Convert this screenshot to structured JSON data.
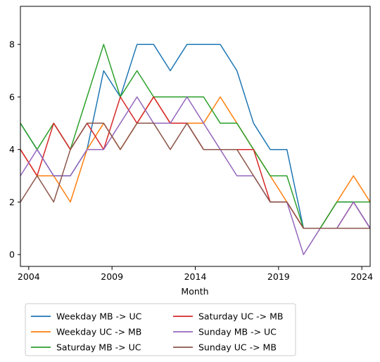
{
  "chart_data": {
    "type": "line",
    "title": "",
    "xlabel": "Month",
    "ylabel": "",
    "x_range": [
      "2003-07",
      "2024-07"
    ],
    "ylim": [
      -0.45,
      9.45
    ],
    "x_ticks": [
      {
        "label": "2004",
        "date": "2004-01"
      },
      {
        "label": "2009",
        "date": "2009-01"
      },
      {
        "label": "2014",
        "date": "2014-01"
      },
      {
        "label": "2019",
        "date": "2019-01"
      },
      {
        "label": "2024",
        "date": "2024-01"
      }
    ],
    "y_ticks": [
      0,
      2,
      4,
      6,
      8
    ],
    "grid": false,
    "legend": {
      "placement": "below",
      "columns": 2
    },
    "series": [
      {
        "name": "Weekday MB -> UC",
        "color": "#1f77b4",
        "x": [
          "2003-07",
          "2004-07",
          "2005-07",
          "2006-07",
          "2007-07",
          "2008-07",
          "2009-07",
          "2010-07",
          "2011-07",
          "2012-07",
          "2013-07",
          "2014-07",
          "2015-07",
          "2016-07",
          "2017-07",
          "2018-07",
          "2019-07",
          "2020-07",
          "2021-07",
          "2022-07",
          "2023-07",
          "2024-07"
        ],
        "values": [
          5,
          4,
          3,
          3,
          4,
          7,
          6,
          8,
          8,
          7,
          8,
          8,
          8,
          7,
          5,
          4,
          4,
          1,
          1,
          2,
          2,
          1
        ]
      },
      {
        "name": "Weekday UC -> MB",
        "color": "#ff7f0e",
        "x": [
          "2003-07",
          "2004-07",
          "2005-07",
          "2006-07",
          "2007-07",
          "2008-07",
          "2009-07",
          "2010-07",
          "2011-07",
          "2012-07",
          "2013-07",
          "2014-07",
          "2015-07",
          "2016-07",
          "2017-07",
          "2018-07",
          "2019-07",
          "2020-07",
          "2021-07",
          "2022-07",
          "2023-07",
          "2024-07"
        ],
        "values": [
          4,
          3,
          3,
          2,
          4,
          5,
          4,
          5,
          6,
          5,
          5,
          5,
          6,
          5,
          4,
          3,
          2,
          1,
          1,
          2,
          3,
          2
        ]
      },
      {
        "name": "Saturday MB -> UC",
        "color": "#2ca02c",
        "x": [
          "2003-07",
          "2004-07",
          "2005-07",
          "2006-07",
          "2007-07",
          "2008-07",
          "2009-07",
          "2010-07",
          "2011-07",
          "2012-07",
          "2013-07",
          "2014-07",
          "2015-07",
          "2016-07",
          "2017-07",
          "2018-07",
          "2019-07",
          "2020-07",
          "2021-07",
          "2022-07",
          "2023-07",
          "2024-07"
        ],
        "values": [
          5,
          4,
          5,
          4,
          6,
          8,
          6,
          7,
          6,
          6,
          6,
          6,
          5,
          5,
          4,
          3,
          3,
          1,
          1,
          2,
          2,
          2
        ]
      },
      {
        "name": "Saturday UC -> MB",
        "color": "#d62728",
        "x": [
          "2003-07",
          "2004-07",
          "2005-07",
          "2006-07",
          "2007-07",
          "2008-07",
          "2009-07",
          "2010-07",
          "2011-07",
          "2012-07",
          "2013-07",
          "2014-07",
          "2015-07",
          "2016-07",
          "2017-07",
          "2018-07",
          "2019-07",
          "2020-07",
          "2021-07",
          "2022-07",
          "2023-07",
          "2024-07"
        ],
        "values": [
          4,
          3,
          5,
          4,
          5,
          4,
          6,
          5,
          6,
          5,
          5,
          4,
          4,
          4,
          4,
          2,
          2,
          1,
          1,
          1,
          2,
          1
        ]
      },
      {
        "name": "Sunday MB -> UC",
        "color": "#9467bd",
        "x": [
          "2003-07",
          "2004-07",
          "2005-07",
          "2006-07",
          "2007-07",
          "2008-07",
          "2009-07",
          "2010-07",
          "2011-07",
          "2012-07",
          "2013-07",
          "2014-07",
          "2015-07",
          "2016-07",
          "2017-07",
          "2018-07",
          "2019-07",
          "2020-07",
          "2021-07",
          "2022-07",
          "2023-07",
          "2024-07"
        ],
        "values": [
          3,
          4,
          3,
          3,
          4,
          4,
          5,
          6,
          5,
          5,
          6,
          5,
          4,
          3,
          3,
          2,
          2,
          0,
          1,
          1,
          2,
          1
        ]
      },
      {
        "name": "Sunday UC -> MB",
        "color": "#8c564b",
        "x": [
          "2003-07",
          "2004-07",
          "2005-07",
          "2006-07",
          "2007-07",
          "2008-07",
          "2009-07",
          "2010-07",
          "2011-07",
          "2012-07",
          "2013-07",
          "2014-07",
          "2015-07",
          "2016-07",
          "2017-07",
          "2018-07",
          "2019-07",
          "2020-07",
          "2021-07",
          "2022-07",
          "2023-07",
          "2024-07"
        ],
        "values": [
          2,
          3,
          2,
          4,
          5,
          5,
          4,
          5,
          5,
          4,
          5,
          4,
          4,
          4,
          3,
          2,
          2,
          1,
          1,
          1,
          1,
          1
        ]
      }
    ]
  }
}
